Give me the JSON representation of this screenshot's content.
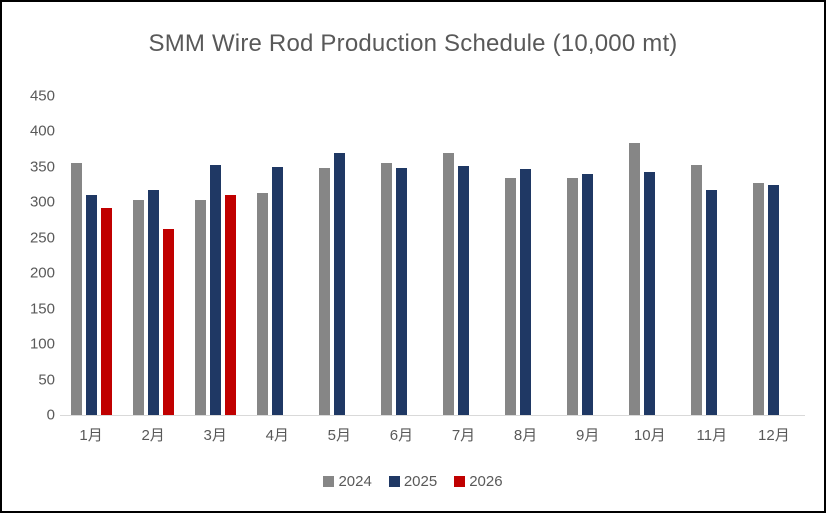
{
  "chart_data": {
    "type": "bar",
    "title": "SMM Wire Rod Production Schedule (10,000 mt)",
    "categories": [
      "1月",
      "2月",
      "3月",
      "4月",
      "5月",
      "6月",
      "7月",
      "8月",
      "9月",
      "10月",
      "11月",
      "12月"
    ],
    "series": [
      {
        "name": "2024",
        "color": "#868686",
        "values": [
          355,
          303,
          303,
          313,
          348,
          356,
          370,
          334,
          335,
          384,
          352,
          328
        ]
      },
      {
        "name": "2025",
        "color": "#1F3864",
        "values": [
          310,
          318,
          352,
          350,
          369,
          349,
          351,
          347,
          340,
          343,
          317,
          325
        ]
      },
      {
        "name": "2026",
        "color": "#C00000",
        "values": [
          292,
          263,
          311,
          null,
          null,
          null,
          null,
          null,
          null,
          null,
          null,
          null
        ]
      }
    ],
    "ylim": [
      0,
      450
    ],
    "yticks": [
      0,
      50,
      100,
      150,
      200,
      250,
      300,
      350,
      400,
      450
    ],
    "grid": false,
    "legend_position": "bottom"
  },
  "styles": {
    "text_color": "#595959",
    "axis_line_color": "#D9D9D9",
    "background": "#FFFFFF",
    "border_color": "#000000"
  }
}
